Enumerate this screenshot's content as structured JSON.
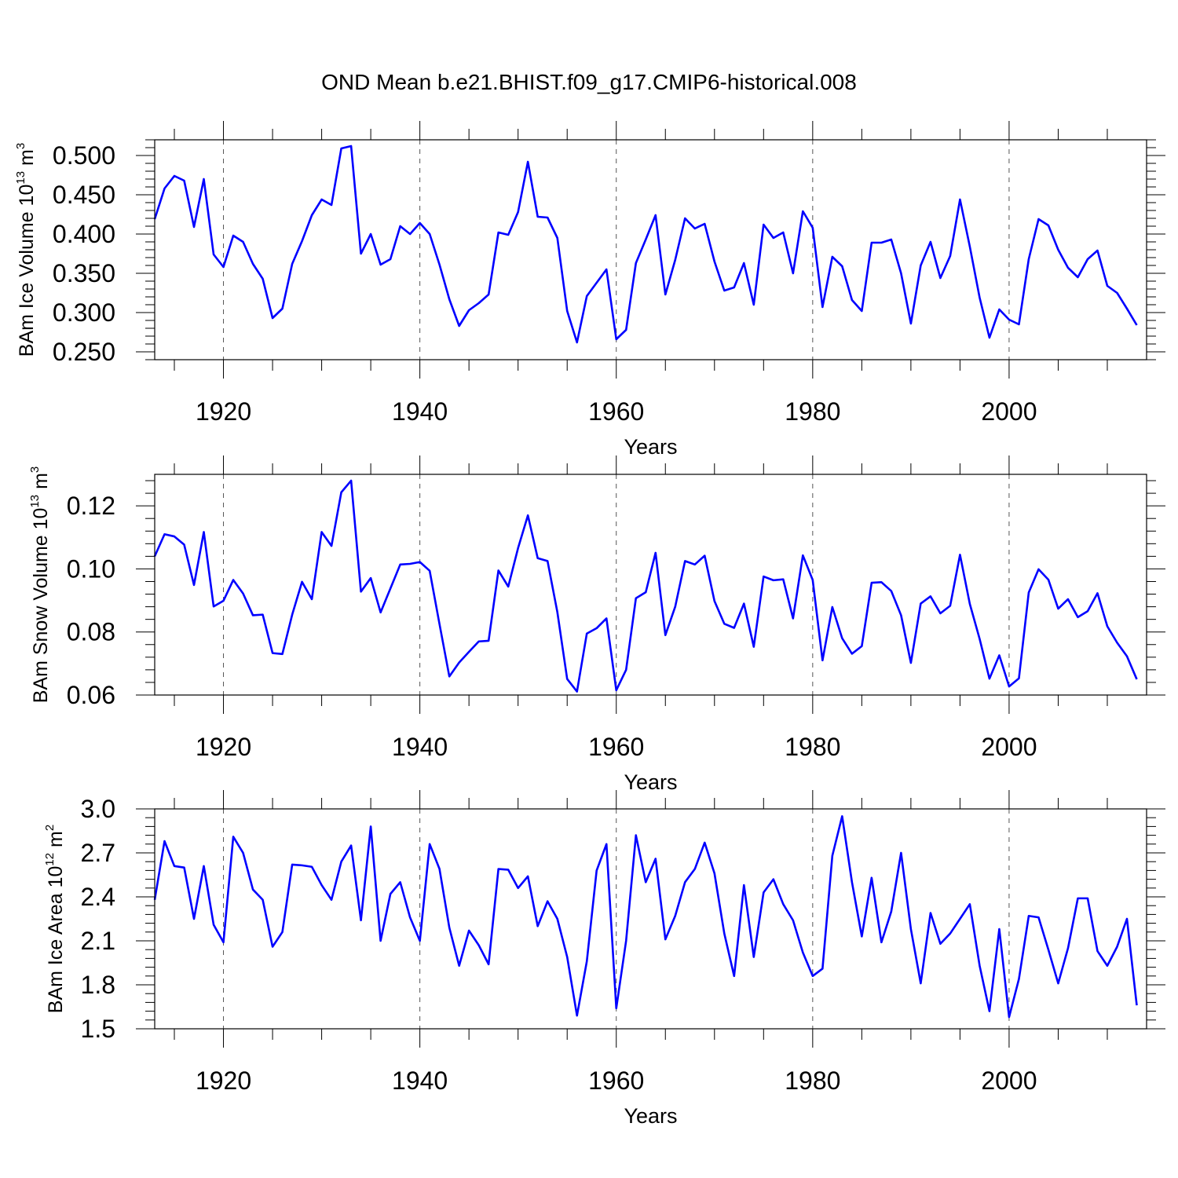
{
  "title": "OND Mean b.e21.BHIST.f09_g17.CMIP6-historical.008",
  "colors": {
    "line": "#0000ff",
    "axis": "#000000",
    "grid": "#555555"
  },
  "chart_data": [
    {
      "type": "line",
      "ylabel_main": "BAm Ice Volume 10",
      "ylabel_exp": "13",
      "ylabel_unit": " m",
      "ylabel_unit_exp": "3",
      "xlabel": "Years",
      "xlim": [
        1913,
        2014
      ],
      "ylim": [
        0.24,
        0.52
      ],
      "xticks": [
        1920,
        1940,
        1960,
        1980,
        2000
      ],
      "xtick_labels": [
        "1920",
        "1940",
        "1960",
        "1980",
        "2000"
      ],
      "yticks": [
        0.25,
        0.3,
        0.35,
        0.4,
        0.45,
        0.5
      ],
      "ytick_labels": [
        "0.250",
        "0.300",
        "0.350",
        "0.400",
        "0.450",
        "0.500"
      ],
      "grid": "vertical dashed at major x ticks",
      "series": [
        {
          "name": "Ice Volume",
          "x_start": 1913,
          "values": [
            0.419,
            0.458,
            0.474,
            0.468,
            0.409,
            0.47,
            0.374,
            0.358,
            0.398,
            0.39,
            0.362,
            0.343,
            0.293,
            0.305,
            0.362,
            0.391,
            0.424,
            0.444,
            0.437,
            0.509,
            0.512,
            0.375,
            0.4,
            0.361,
            0.368,
            0.41,
            0.4,
            0.414,
            0.4,
            0.361,
            0.317,
            0.283,
            0.303,
            0.312,
            0.323,
            0.402,
            0.399,
            0.428,
            0.492,
            0.422,
            0.421,
            0.395,
            0.302,
            0.262,
            0.321,
            0.338,
            0.355,
            0.266,
            0.278,
            0.363,
            0.393,
            0.424,
            0.323,
            0.367,
            0.42,
            0.407,
            0.413,
            0.365,
            0.328,
            0.332,
            0.363,
            0.31,
            0.412,
            0.395,
            0.402,
            0.35,
            0.429,
            0.408,
            0.307,
            0.371,
            0.359,
            0.316,
            0.302,
            0.389,
            0.389,
            0.393,
            0.35,
            0.286,
            0.36,
            0.39,
            0.344,
            0.372,
            0.444,
            0.384,
            0.319,
            0.268,
            0.304,
            0.291,
            0.285,
            0.368,
            0.419,
            0.411,
            0.38,
            0.357,
            0.345,
            0.368,
            0.379,
            0.334,
            0.325,
            0.305,
            0.284
          ]
        }
      ]
    },
    {
      "type": "line",
      "ylabel_main": "BAm Snow Volume 10",
      "ylabel_exp": "13",
      "ylabel_unit": " m",
      "ylabel_unit_exp": "3",
      "xlabel": "Years",
      "xlim": [
        1913,
        2014
      ],
      "ylim": [
        0.06,
        0.13
      ],
      "xticks": [
        1920,
        1940,
        1960,
        1980,
        2000
      ],
      "xtick_labels": [
        "1920",
        "1940",
        "1960",
        "1980",
        "2000"
      ],
      "yticks": [
        0.06,
        0.08,
        0.1,
        0.12
      ],
      "ytick_labels": [
        "0.06",
        "0.08",
        "0.10",
        "0.12"
      ],
      "grid": "vertical dashed at major x ticks",
      "series": [
        {
          "name": "Snow Volume",
          "x_start": 1913,
          "values": [
            0.104,
            0.111,
            0.1103,
            0.1077,
            0.0949,
            0.1117,
            0.0881,
            0.0899,
            0.0965,
            0.0922,
            0.0853,
            0.0855,
            0.0733,
            0.073,
            0.0855,
            0.0959,
            0.0904,
            0.1117,
            0.1073,
            0.1243,
            0.128,
            0.0928,
            0.0971,
            0.0862,
            0.0938,
            0.1014,
            0.1016,
            0.1022,
            0.0994,
            0.0825,
            0.0659,
            0.0703,
            0.0737,
            0.077,
            0.0772,
            0.0995,
            0.0944,
            0.1066,
            0.117,
            0.1034,
            0.1025,
            0.0863,
            0.0651,
            0.0611,
            0.0795,
            0.0812,
            0.0843,
            0.0615,
            0.068,
            0.0907,
            0.0926,
            0.1051,
            0.079,
            0.088,
            0.1025,
            0.1014,
            0.1042,
            0.0898,
            0.0826,
            0.0813,
            0.089,
            0.0753,
            0.0976,
            0.0964,
            0.0967,
            0.0843,
            0.1043,
            0.0965,
            0.071,
            0.0879,
            0.078,
            0.0731,
            0.0755,
            0.0956,
            0.0958,
            0.093,
            0.0853,
            0.0702,
            0.089,
            0.0913,
            0.0859,
            0.0883,
            0.1045,
            0.0889,
            0.0778,
            0.0652,
            0.0726,
            0.0627,
            0.0653,
            0.0925,
            0.0999,
            0.0966,
            0.0874,
            0.0904,
            0.0847,
            0.0866,
            0.0923,
            0.0818,
            0.0766,
            0.0723,
            0.065
          ]
        }
      ]
    },
    {
      "type": "line",
      "ylabel_main": "BAm Ice Area 10",
      "ylabel_exp": "12",
      "ylabel_unit": " m",
      "ylabel_unit_exp": "2",
      "xlabel": "Years",
      "xlim": [
        1913,
        2014
      ],
      "ylim": [
        1.5,
        3.0
      ],
      "xticks": [
        1920,
        1940,
        1960,
        1980,
        2000
      ],
      "xtick_labels": [
        "1920",
        "1940",
        "1960",
        "1980",
        "2000"
      ],
      "yticks": [
        1.5,
        1.8,
        2.1,
        2.4,
        2.7,
        3.0
      ],
      "ytick_labels": [
        "1.5",
        "1.8",
        "2.1",
        "2.4",
        "2.7",
        "3.0"
      ],
      "grid": "vertical dashed at major x ticks",
      "series": [
        {
          "name": "Ice Area",
          "x_start": 1913,
          "values": [
            2.38,
            2.78,
            2.61,
            2.6,
            2.25,
            2.61,
            2.21,
            2.09,
            2.81,
            2.7,
            2.45,
            2.38,
            2.06,
            2.16,
            2.62,
            2.615,
            2.605,
            2.48,
            2.38,
            2.64,
            2.75,
            2.24,
            2.88,
            2.1,
            2.42,
            2.5,
            2.26,
            2.1,
            2.76,
            2.59,
            2.19,
            1.93,
            2.17,
            2.07,
            1.94,
            2.59,
            2.585,
            2.46,
            2.54,
            2.2,
            2.37,
            2.25,
            1.99,
            1.59,
            1.96,
            2.58,
            2.76,
            1.64,
            2.1,
            2.82,
            2.5,
            2.66,
            2.11,
            2.27,
            2.5,
            2.59,
            2.77,
            2.56,
            2.15,
            1.86,
            2.48,
            1.99,
            2.43,
            2.52,
            2.35,
            2.24,
            2.02,
            1.86,
            1.91,
            2.68,
            2.95,
            2.5,
            2.13,
            2.53,
            2.09,
            2.3,
            2.7,
            2.18,
            1.81,
            2.29,
            2.08,
            2.15,
            2.25,
            2.35,
            1.93,
            1.62,
            2.18,
            1.58,
            1.84,
            2.27,
            2.26,
            2.04,
            1.81,
            2.05,
            2.39,
            2.39,
            2.03,
            1.93,
            2.06,
            2.25,
            1.66
          ]
        }
      ]
    }
  ]
}
